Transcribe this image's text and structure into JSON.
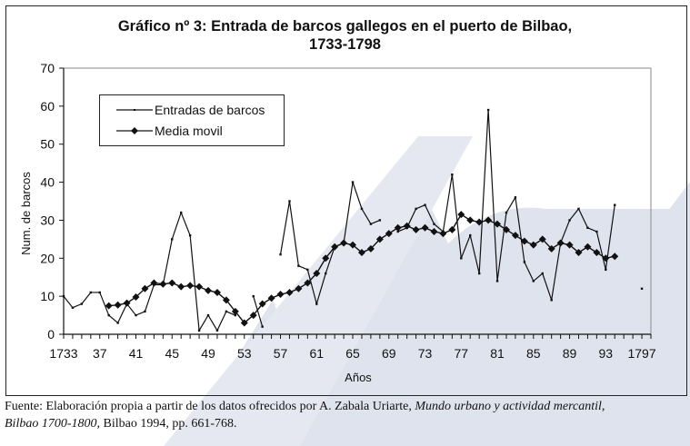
{
  "title_line1": "Gráfico nº 3: Entrada de barcos gallegos en el puerto de Bilbao,",
  "title_line2": "1733-1798",
  "footer": {
    "prefix": "Fuente: Elaboración propia a partir de los datos ofrecidos por A. Zabala Uriarte, ",
    "italic1": "Mundo urbano y actividad mercantil,",
    "italic2": "Bilbao 1700-1800,",
    "suffix": " Bilbao 1994, pp. 661-768."
  },
  "colors": {
    "line": "#111111",
    "background": "#ffffff",
    "watermark": "#dfe3ee"
  },
  "chart_data": {
    "type": "line",
    "title": "Gráfico nº 3: Entrada de barcos gallegos en el puerto de Bilbao, 1733-1798",
    "xlabel": "Años",
    "ylabel": "Num. de barcos",
    "xlim": [
      1733,
      1798
    ],
    "ylim": [
      0,
      70
    ],
    "yticks": [
      0,
      10,
      20,
      30,
      40,
      50,
      60,
      70
    ],
    "xtick_labels": [
      {
        "year": 1733,
        "label": "1733"
      },
      {
        "year": 1737,
        "label": "37"
      },
      {
        "year": 1741,
        "label": "41"
      },
      {
        "year": 1745,
        "label": "45"
      },
      {
        "year": 1749,
        "label": "49"
      },
      {
        "year": 1753,
        "label": "53"
      },
      {
        "year": 1757,
        "label": "57"
      },
      {
        "year": 1761,
        "label": "61"
      },
      {
        "year": 1765,
        "label": "65"
      },
      {
        "year": 1769,
        "label": "69"
      },
      {
        "year": 1773,
        "label": "73"
      },
      {
        "year": 1777,
        "label": "77"
      },
      {
        "year": 1781,
        "label": "81"
      },
      {
        "year": 1785,
        "label": "85"
      },
      {
        "year": 1789,
        "label": "89"
      },
      {
        "year": 1793,
        "label": "93"
      },
      {
        "year": 1797,
        "label": "1797"
      }
    ],
    "grid": false,
    "legend_position": "top-left",
    "x": [
      1733,
      1734,
      1735,
      1736,
      1737,
      1738,
      1739,
      1740,
      1741,
      1742,
      1743,
      1744,
      1745,
      1746,
      1747,
      1748,
      1749,
      1750,
      1751,
      1752,
      1753,
      1754,
      1755,
      1756,
      1757,
      1758,
      1759,
      1760,
      1761,
      1762,
      1763,
      1764,
      1765,
      1766,
      1767,
      1768,
      1769,
      1770,
      1771,
      1772,
      1773,
      1774,
      1775,
      1776,
      1777,
      1778,
      1779,
      1780,
      1781,
      1782,
      1783,
      1784,
      1785,
      1786,
      1787,
      1788,
      1789,
      1790,
      1791,
      1792,
      1793,
      1794,
      1795,
      1796,
      1797
    ],
    "series": [
      {
        "name": "Entradas de barcos",
        "marker": "small-dot",
        "values": [
          10,
          7,
          8,
          11,
          11,
          5,
          3,
          8,
          5,
          6,
          13,
          13,
          25,
          32,
          26,
          1,
          5,
          1,
          6,
          5,
          null,
          10,
          2,
          null,
          21,
          35,
          18,
          17,
          8,
          16,
          23,
          24,
          40,
          33,
          29,
          30,
          null,
          27,
          28,
          33,
          34,
          29,
          27,
          42,
          20,
          26,
          16,
          59,
          14,
          32,
          36,
          19,
          14,
          16,
          9,
          24,
          30,
          33,
          28,
          27,
          17,
          34,
          null,
          null,
          12
        ]
      },
      {
        "name": "Media movil",
        "marker": "diamond",
        "values": [
          null,
          null,
          null,
          null,
          null,
          7.5,
          7.7,
          8.2,
          9.8,
          12,
          13.5,
          13.2,
          13.5,
          12.5,
          12.8,
          12.5,
          11.5,
          11,
          9,
          6,
          3,
          5,
          8,
          9.5,
          10.5,
          11,
          12,
          13.5,
          16,
          20,
          23,
          24,
          23.5,
          21.5,
          22.5,
          25,
          26.5,
          28,
          28.5,
          27.5,
          28,
          27,
          26.5,
          27.5,
          31.5,
          30,
          29.5,
          30,
          29,
          27.5,
          26,
          24.5,
          23.5,
          25,
          22.5,
          24,
          23.5,
          21.5,
          23,
          21.5,
          20,
          20.5,
          null,
          null,
          null
        ]
      }
    ]
  }
}
